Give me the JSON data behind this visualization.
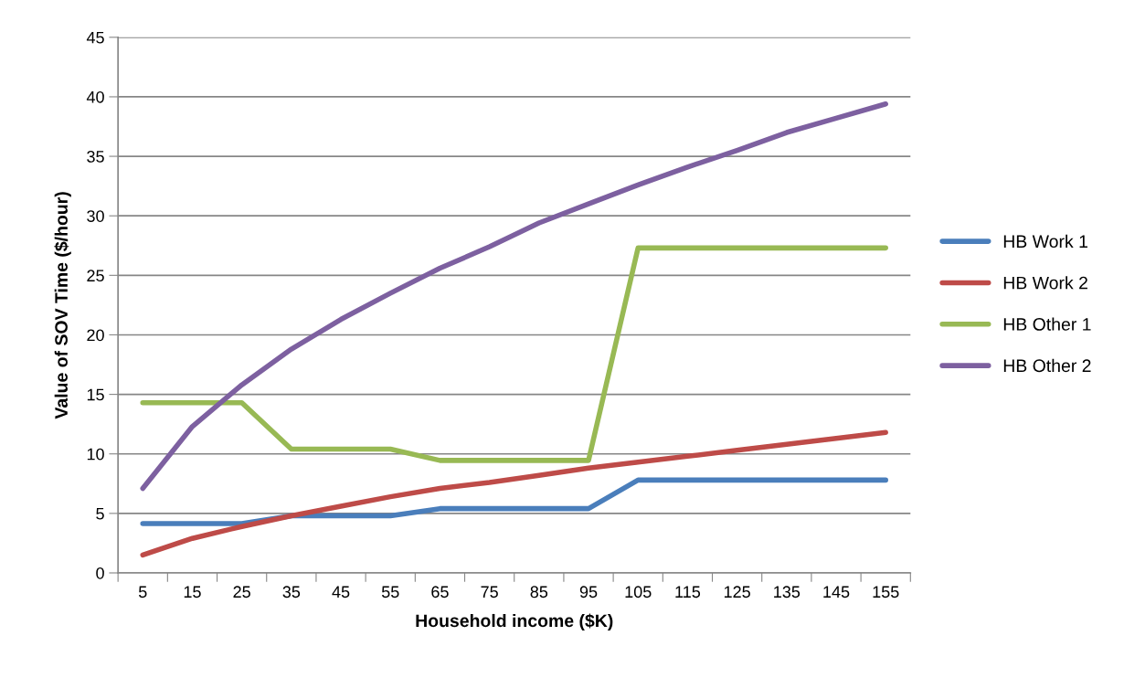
{
  "chart_data": {
    "type": "line",
    "xlabel": "Household income ($K)",
    "ylabel": "Value of SOV Time ($/hour)",
    "categories": [
      "5",
      "15",
      "25",
      "35",
      "45",
      "55",
      "65",
      "75",
      "85",
      "95",
      "105",
      "115",
      "125",
      "135",
      "145",
      "155"
    ],
    "series": [
      {
        "name": "HB Work 1",
        "color": "#4a7ebb",
        "values": [
          4.15,
          4.15,
          4.15,
          4.8,
          4.8,
          4.8,
          5.4,
          5.4,
          5.4,
          5.4,
          7.8,
          7.8,
          7.8,
          7.8,
          7.8,
          7.8
        ]
      },
      {
        "name": "HB Work 2",
        "color": "#be4b48",
        "values": [
          1.5,
          2.9,
          3.9,
          4.8,
          5.6,
          6.4,
          7.1,
          7.6,
          8.2,
          8.8,
          9.3,
          9.8,
          10.3,
          10.8,
          11.3,
          11.8
        ]
      },
      {
        "name": "HB Other 1",
        "color": "#98b954",
        "values": [
          14.3,
          14.3,
          14.3,
          10.4,
          10.4,
          10.4,
          9.45,
          9.45,
          9.45,
          9.45,
          27.3,
          27.3,
          27.3,
          27.3,
          27.3,
          27.3
        ]
      },
      {
        "name": "HB Other 2",
        "color": "#7d60a0",
        "values": [
          7.1,
          12.3,
          15.8,
          18.8,
          21.3,
          23.5,
          25.6,
          27.4,
          29.4,
          31.0,
          32.6,
          34.1,
          35.5,
          37.0,
          38.2,
          39.4
        ]
      }
    ],
    "ylim": [
      0,
      45
    ],
    "yticks": [
      0,
      5,
      10,
      15,
      20,
      25,
      30,
      35,
      40,
      45
    ],
    "grid": "y",
    "legend": "right",
    "marker": "none",
    "line_style": "solid"
  }
}
